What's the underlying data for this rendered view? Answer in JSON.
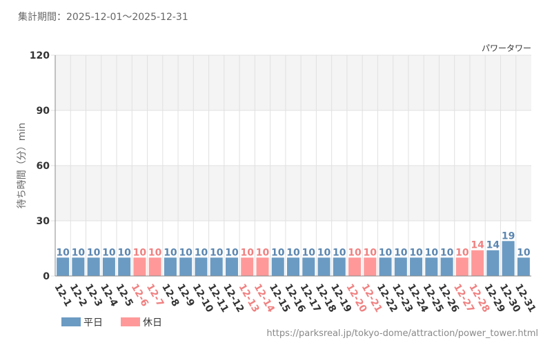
{
  "header": {
    "period_text": "集計期間：2025-12-01～2025-12-31"
  },
  "chart_data": {
    "type": "bar",
    "series_label": "パワータワー",
    "ylabel": "待ち時間（分）min",
    "xlabel": "",
    "ylim": [
      0,
      120
    ],
    "yticks": [
      "0",
      "30",
      "60",
      "90",
      "120"
    ],
    "categories": [
      "12-1",
      "12-2",
      "12-3",
      "12-4",
      "12-5",
      "12-6",
      "12-7",
      "12-8",
      "12-9",
      "12-10",
      "12-11",
      "12-12",
      "12-13",
      "12-14",
      "12-15",
      "12-16",
      "12-17",
      "12-18",
      "12-19",
      "12-20",
      "12-21",
      "12-22",
      "12-23",
      "12-24",
      "12-25",
      "12-26",
      "12-27",
      "12-28",
      "12-29",
      "12-30",
      "12-31"
    ],
    "values": [
      10,
      10,
      10,
      10,
      10,
      10,
      10,
      10,
      10,
      10,
      10,
      10,
      10,
      10,
      10,
      10,
      10,
      10,
      10,
      10,
      10,
      10,
      10,
      10,
      10,
      10,
      10,
      14,
      14,
      19,
      10
    ],
    "day_types": [
      "weekday",
      "weekday",
      "weekday",
      "weekday",
      "weekday",
      "holiday",
      "holiday",
      "weekday",
      "weekday",
      "weekday",
      "weekday",
      "weekday",
      "holiday",
      "holiday",
      "weekday",
      "weekday",
      "weekday",
      "weekday",
      "weekday",
      "holiday",
      "holiday",
      "weekday",
      "weekday",
      "weekday",
      "weekday",
      "weekday",
      "holiday",
      "holiday",
      "weekday",
      "weekday",
      "weekday"
    ],
    "legend": [
      {
        "key": "weekday",
        "label": "平日"
      },
      {
        "key": "holiday",
        "label": "休日"
      }
    ],
    "legend_position": "bottom-left",
    "grid": true,
    "colors": {
      "weekday_bar": "#6b9bc3",
      "weekday_text": "#5b86b0",
      "holiday_bar": "#ff9999",
      "holiday_text": "#f08080",
      "band_shade": "#f4f4f4",
      "grid_line": "#e0e0e0"
    }
  },
  "footer": {
    "source_text": "https://parksreal.jp/tokyo-dome/attraction/power_tower.html"
  }
}
